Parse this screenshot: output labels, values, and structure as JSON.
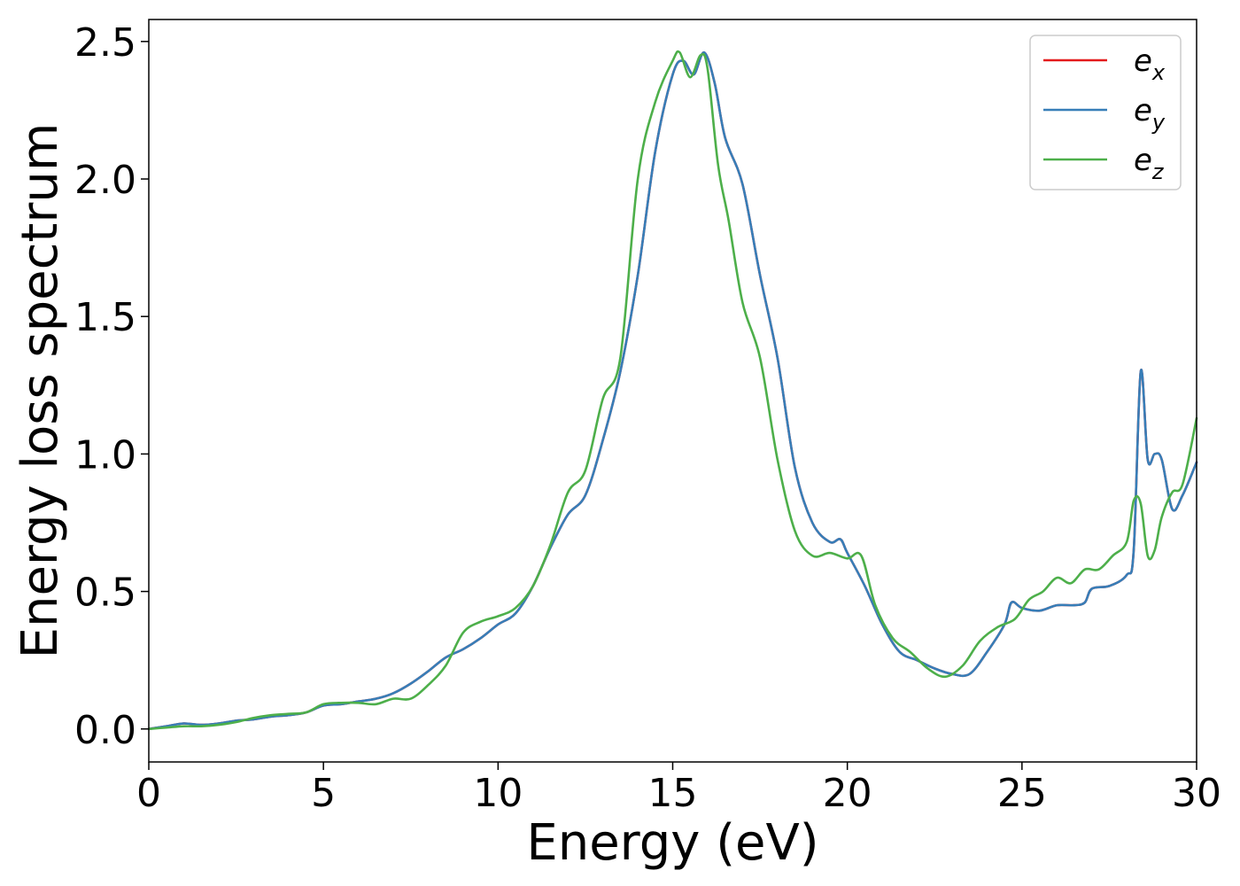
{
  "chart_data": {
    "type": "line",
    "title": "",
    "xlabel": "Energy (eV)",
    "ylabel": "Energy loss spectrum",
    "xlim": [
      0,
      30
    ],
    "ylim": [
      -0.12,
      2.58
    ],
    "xticks": [
      0,
      5,
      10,
      15,
      20,
      25,
      30
    ],
    "xtick_labels": [
      "0",
      "5",
      "10",
      "15",
      "20",
      "25",
      "30"
    ],
    "yticks": [
      0.0,
      0.5,
      1.0,
      1.5,
      2.0,
      2.5
    ],
    "ytick_labels": [
      "0.0",
      "0.5",
      "1.0",
      "1.5",
      "2.0",
      "2.5"
    ],
    "grid": false,
    "legend_position": "top-right",
    "series": [
      {
        "name": "ex",
        "label_base": "e",
        "label_sub": "x",
        "color": "#e41a1c",
        "x": [
          0,
          0.5,
          1,
          1.5,
          2,
          2.5,
          3,
          3.5,
          4,
          4.5,
          5,
          5.5,
          6,
          6.5,
          7,
          7.5,
          8,
          8.5,
          9,
          9.5,
          10,
          10.5,
          11,
          11.5,
          12,
          12.5,
          13,
          13.5,
          14,
          14.5,
          15,
          15.3,
          15.6,
          15.9,
          16.2,
          16.5,
          17,
          17.5,
          18,
          18.5,
          19,
          19.5,
          19.8,
          20,
          20.5,
          21,
          21.5,
          22,
          22.5,
          23,
          23.5,
          24,
          24.5,
          24.7,
          25,
          25.5,
          26,
          26.5,
          26.8,
          27,
          27.5,
          28,
          28.2,
          28.4,
          28.6,
          28.8,
          29,
          29.3,
          29.6,
          30
        ],
        "y": [
          0,
          0.01,
          0.02,
          0.015,
          0.02,
          0.03,
          0.035,
          0.045,
          0.05,
          0.06,
          0.085,
          0.09,
          0.1,
          0.11,
          0.13,
          0.165,
          0.21,
          0.26,
          0.29,
          0.33,
          0.38,
          0.42,
          0.52,
          0.66,
          0.78,
          0.85,
          1.05,
          1.3,
          1.65,
          2.1,
          2.38,
          2.43,
          2.38,
          2.46,
          2.35,
          2.15,
          1.98,
          1.65,
          1.35,
          0.95,
          0.75,
          0.68,
          0.69,
          0.64,
          0.52,
          0.38,
          0.28,
          0.25,
          0.22,
          0.2,
          0.2,
          0.28,
          0.38,
          0.46,
          0.44,
          0.43,
          0.45,
          0.45,
          0.46,
          0.51,
          0.52,
          0.56,
          0.65,
          1.3,
          0.98,
          1.0,
          0.98,
          0.8,
          0.85,
          0.97
        ]
      },
      {
        "name": "ey",
        "label_base": "e",
        "label_sub": "y",
        "color": "#377eb8",
        "x": [
          0,
          0.5,
          1,
          1.5,
          2,
          2.5,
          3,
          3.5,
          4,
          4.5,
          5,
          5.5,
          6,
          6.5,
          7,
          7.5,
          8,
          8.5,
          9,
          9.5,
          10,
          10.5,
          11,
          11.5,
          12,
          12.5,
          13,
          13.5,
          14,
          14.5,
          15,
          15.3,
          15.6,
          15.9,
          16.2,
          16.5,
          17,
          17.5,
          18,
          18.5,
          19,
          19.5,
          19.8,
          20,
          20.5,
          21,
          21.5,
          22,
          22.5,
          23,
          23.5,
          24,
          24.5,
          24.7,
          25,
          25.5,
          26,
          26.5,
          26.8,
          27,
          27.5,
          28,
          28.2,
          28.4,
          28.6,
          28.8,
          29,
          29.3,
          29.6,
          30
        ],
        "y": [
          0,
          0.01,
          0.02,
          0.015,
          0.02,
          0.03,
          0.035,
          0.045,
          0.05,
          0.06,
          0.085,
          0.09,
          0.1,
          0.11,
          0.13,
          0.165,
          0.21,
          0.26,
          0.29,
          0.33,
          0.38,
          0.42,
          0.52,
          0.66,
          0.78,
          0.85,
          1.05,
          1.3,
          1.65,
          2.1,
          2.38,
          2.43,
          2.38,
          2.46,
          2.35,
          2.15,
          1.98,
          1.65,
          1.35,
          0.95,
          0.75,
          0.68,
          0.69,
          0.64,
          0.52,
          0.38,
          0.28,
          0.25,
          0.22,
          0.2,
          0.2,
          0.28,
          0.38,
          0.46,
          0.44,
          0.43,
          0.45,
          0.45,
          0.46,
          0.51,
          0.52,
          0.56,
          0.65,
          1.3,
          0.98,
          1.0,
          0.98,
          0.8,
          0.85,
          0.97
        ]
      },
      {
        "name": "ez",
        "label_base": "e",
        "label_sub": "z",
        "color": "#4daf4a",
        "x": [
          0,
          0.5,
          1,
          1.5,
          2,
          2.5,
          3,
          3.5,
          4,
          4.5,
          5,
          5.5,
          6,
          6.5,
          7,
          7.5,
          8,
          8.5,
          9,
          9.5,
          10,
          10.5,
          11,
          11.5,
          12,
          12.5,
          13,
          13.5,
          14,
          14.5,
          15,
          15.2,
          15.5,
          15.8,
          16,
          16.3,
          16.6,
          17,
          17.5,
          18,
          18.5,
          19,
          19.5,
          20,
          20.4,
          20.8,
          21.3,
          21.8,
          22.3,
          22.8,
          23.3,
          23.8,
          24.3,
          24.8,
          25.2,
          25.6,
          26,
          26.4,
          26.8,
          27.2,
          27.6,
          28,
          28.2,
          28.4,
          28.6,
          28.8,
          29,
          29.3,
          29.6,
          30
        ],
        "y": [
          0,
          0.005,
          0.01,
          0.01,
          0.015,
          0.025,
          0.04,
          0.05,
          0.055,
          0.06,
          0.09,
          0.095,
          0.095,
          0.09,
          0.11,
          0.11,
          0.16,
          0.23,
          0.35,
          0.39,
          0.41,
          0.44,
          0.52,
          0.67,
          0.86,
          0.94,
          1.2,
          1.35,
          2.0,
          2.28,
          2.43,
          2.46,
          2.37,
          2.45,
          2.4,
          2.05,
          1.85,
          1.55,
          1.35,
          0.98,
          0.72,
          0.63,
          0.64,
          0.62,
          0.63,
          0.45,
          0.33,
          0.28,
          0.22,
          0.19,
          0.23,
          0.32,
          0.37,
          0.4,
          0.47,
          0.5,
          0.55,
          0.53,
          0.58,
          0.58,
          0.63,
          0.68,
          0.83,
          0.82,
          0.63,
          0.65,
          0.77,
          0.86,
          0.89,
          1.13
        ]
      }
    ]
  }
}
